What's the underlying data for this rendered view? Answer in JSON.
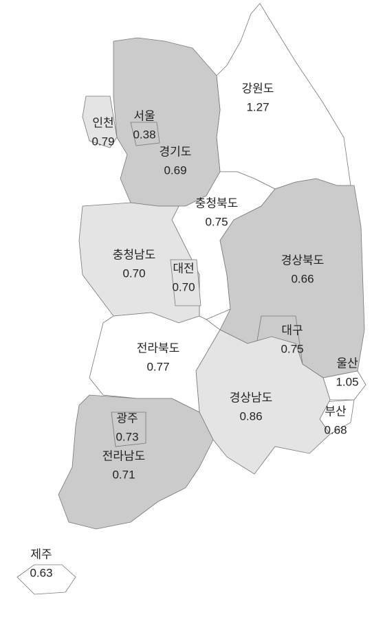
{
  "regions": [
    {
      "name": "강원도",
      "value": "1.27",
      "color": "#ffffff"
    },
    {
      "name": "경기도",
      "value": "0.69",
      "color": "#cbcbcb"
    },
    {
      "name": "인천",
      "value": "0.79",
      "color": "#e4e4e4"
    },
    {
      "name": "서울",
      "value": "0.38",
      "color": "#cbcbcb"
    },
    {
      "name": "충청북도",
      "value": "0.75",
      "color": "#ffffff"
    },
    {
      "name": "충청남도",
      "value": "0.70",
      "color": "#e4e4e4"
    },
    {
      "name": "대전",
      "value": "0.70",
      "color": "#e4e4e4"
    },
    {
      "name": "경상북도",
      "value": "0.66",
      "color": "#cbcbcb"
    },
    {
      "name": "대구",
      "value": "0.75",
      "color": "#cbcbcb"
    },
    {
      "name": "울산",
      "value": "1.05",
      "color": "#ffffff"
    },
    {
      "name": "부산",
      "value": "0.68",
      "color": "#ffffff"
    },
    {
      "name": "경상남도",
      "value": "0.86",
      "color": "#e4e4e4"
    },
    {
      "name": "전라북도",
      "value": "0.77",
      "color": "#ffffff"
    },
    {
      "name": "전라남도",
      "value": "0.71",
      "color": "#cbcbcb"
    },
    {
      "name": "광주",
      "value": "0.73",
      "color": "#cbcbcb"
    },
    {
      "name": "제주",
      "value": "0.63",
      "color": "#ffffff"
    }
  ]
}
